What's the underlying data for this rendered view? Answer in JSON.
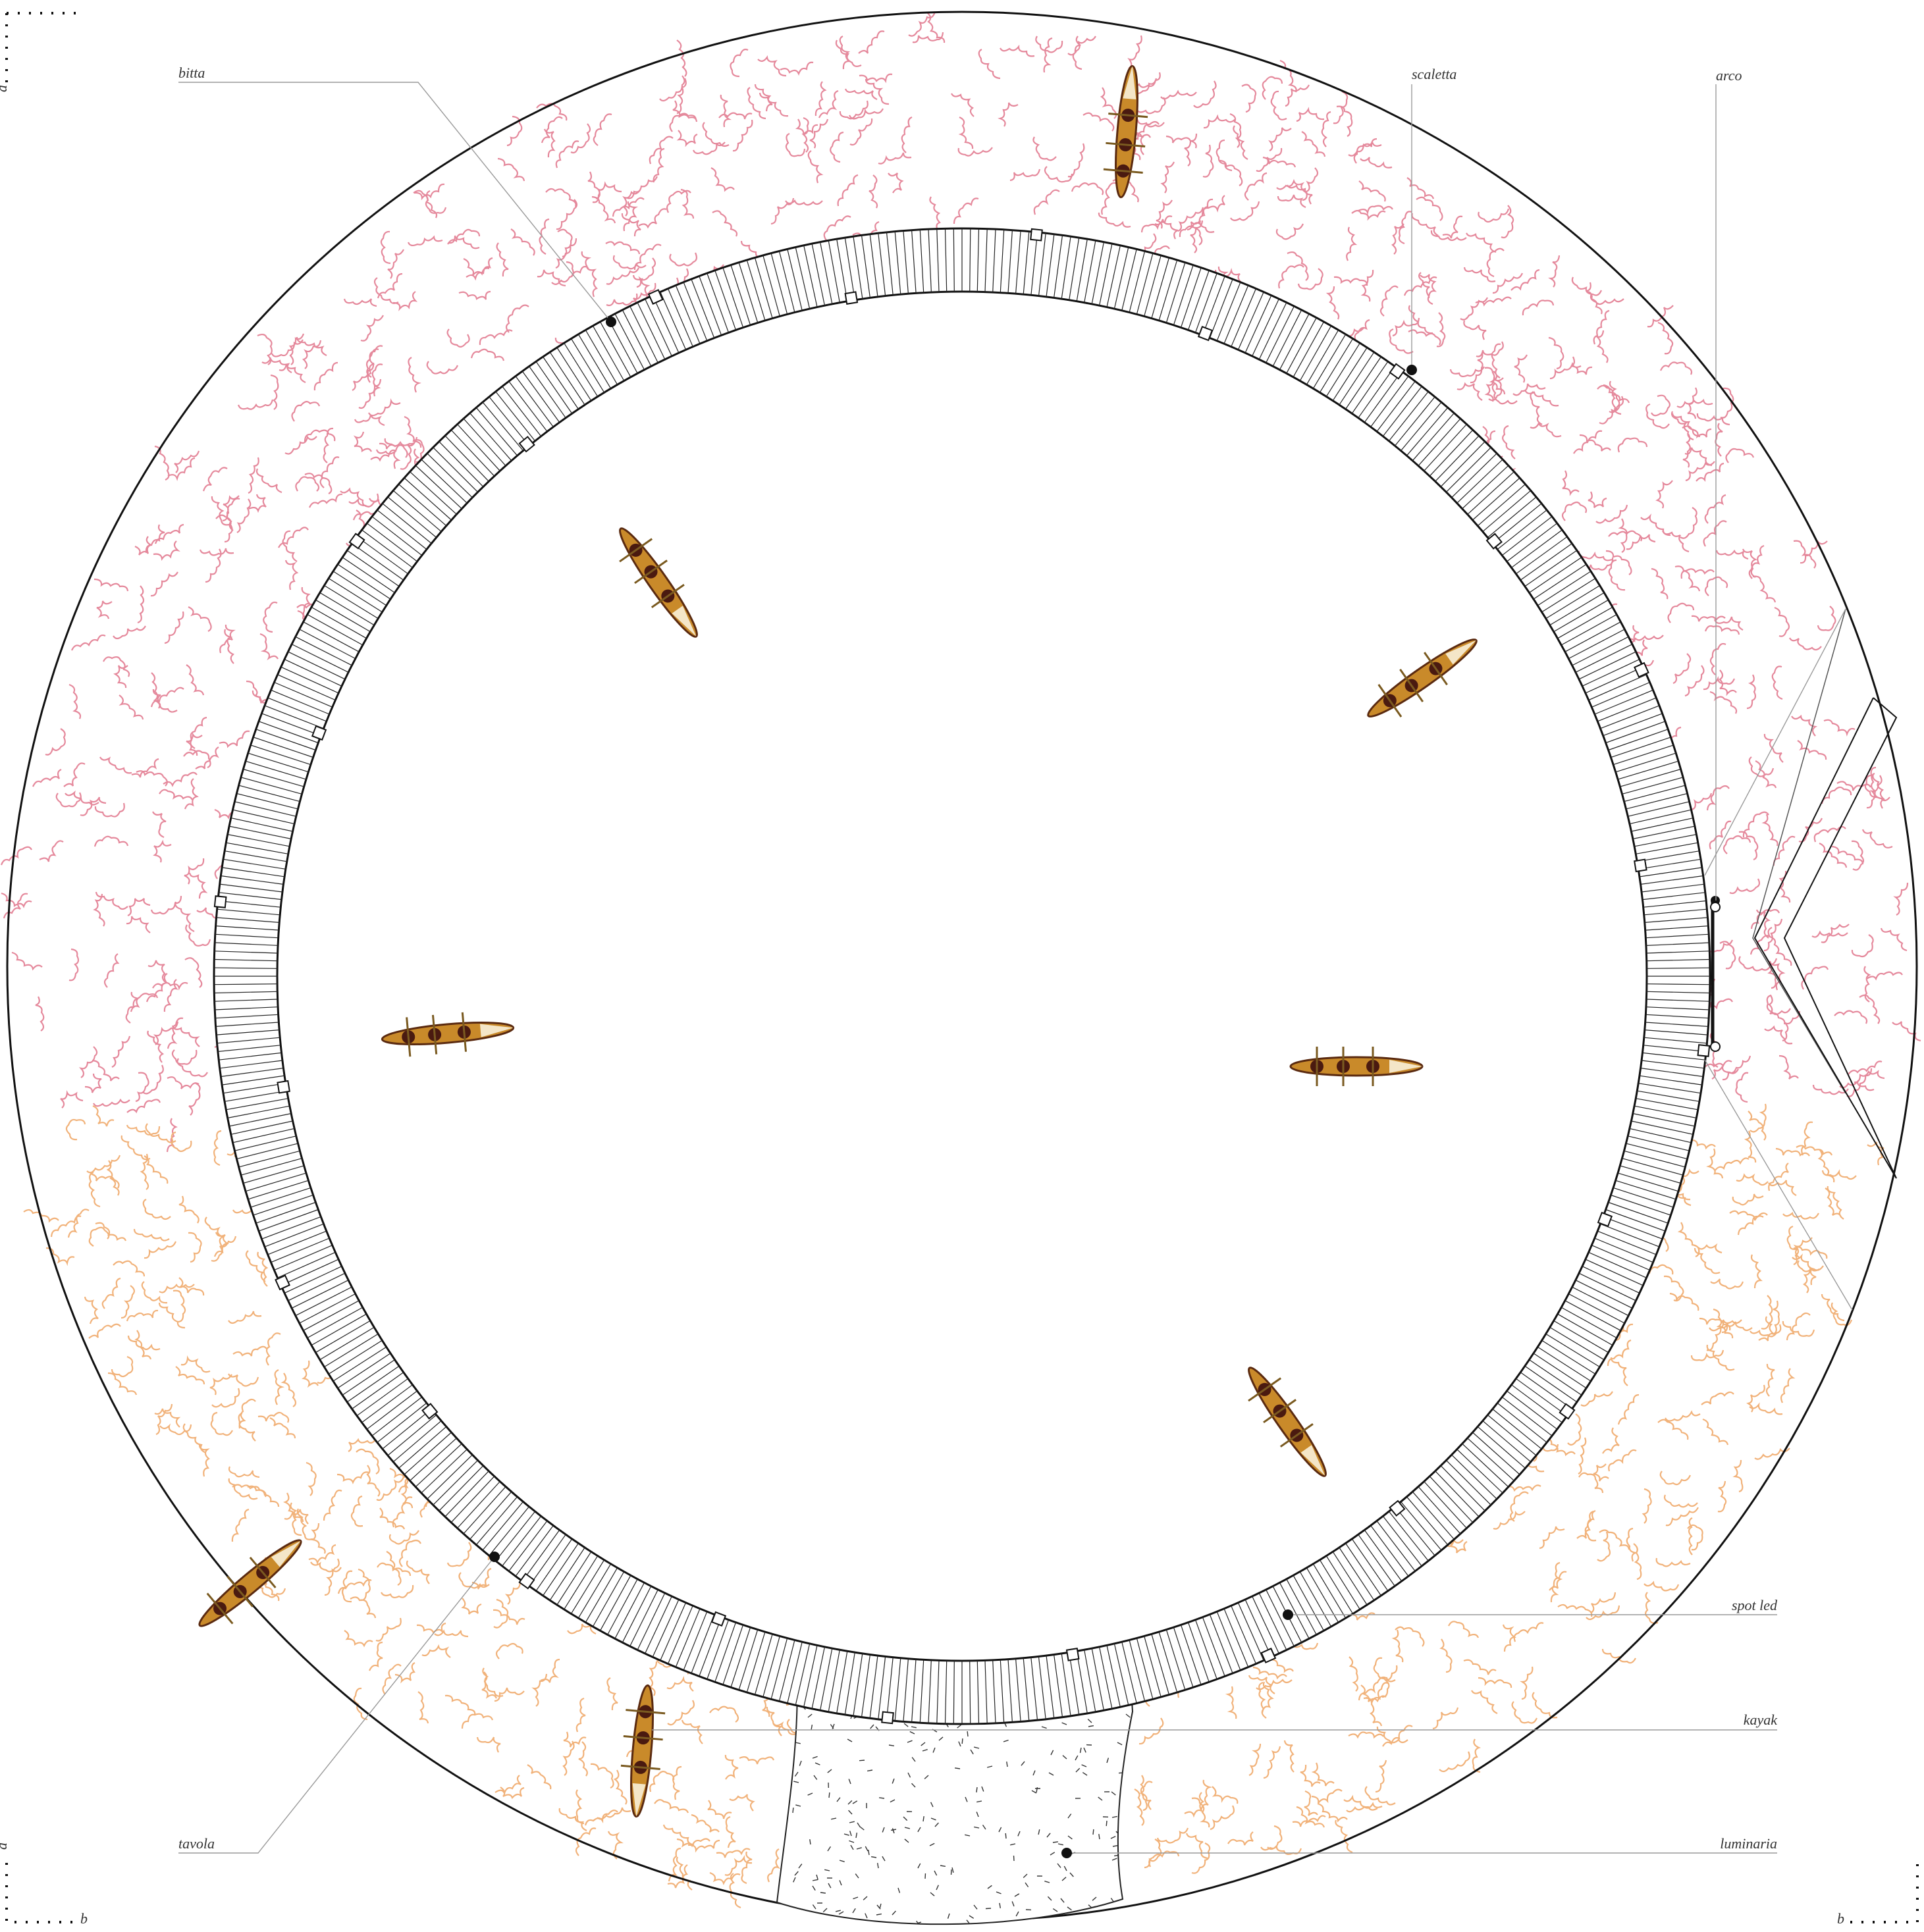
{
  "labels": {
    "bitta": "bitta",
    "scaletta": "scaletta",
    "arco": "arco",
    "spot_led": "spot led",
    "kayak": "kayak",
    "tavola": "tavola",
    "luminaria": "luminaria"
  },
  "corners": {
    "top_left": "a",
    "bottom_left": "a",
    "bottom_left_b": "b",
    "bottom_right": "b"
  }
}
